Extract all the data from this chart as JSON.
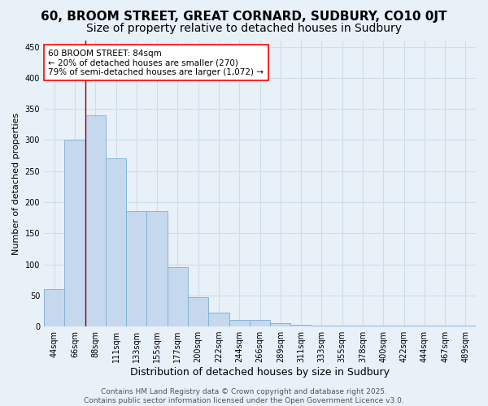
{
  "title": "60, BROOM STREET, GREAT CORNARD, SUDBURY, CO10 0JT",
  "subtitle": "Size of property relative to detached houses in Sudbury",
  "xlabel": "Distribution of detached houses by size in Sudbury",
  "ylabel": "Number of detached properties",
  "categories": [
    "44sqm",
    "66sqm",
    "88sqm",
    "111sqm",
    "133sqm",
    "155sqm",
    "177sqm",
    "200sqm",
    "222sqm",
    "244sqm",
    "266sqm",
    "289sqm",
    "311sqm",
    "333sqm",
    "355sqm",
    "378sqm",
    "400sqm",
    "422sqm",
    "444sqm",
    "467sqm",
    "489sqm"
  ],
  "values": [
    60,
    300,
    340,
    270,
    185,
    185,
    95,
    47,
    22,
    10,
    10,
    5,
    3,
    2,
    2,
    2,
    1,
    1,
    1,
    1,
    1
  ],
  "bar_color": "#c5d8ed",
  "bar_edge_color": "#7bafd4",
  "grid_color": "#d0dde8",
  "background_color": "#e8f0f8",
  "annotation_box_text": "60 BROOM STREET: 84sqm\n← 20% of detached houses are smaller (270)\n79% of semi-detached houses are larger (1,072) →",
  "property_line_x": 1.5,
  "ylim": [
    0,
    460
  ],
  "yticks": [
    0,
    50,
    100,
    150,
    200,
    250,
    300,
    350,
    400,
    450
  ],
  "footer_line1": "Contains HM Land Registry data © Crown copyright and database right 2025.",
  "footer_line2": "Contains public sector information licensed under the Open Government Licence v3.0.",
  "title_fontsize": 11,
  "subtitle_fontsize": 10,
  "xlabel_fontsize": 9,
  "ylabel_fontsize": 8,
  "tick_fontsize": 7,
  "footer_fontsize": 6.5,
  "annotation_fontsize": 7.5
}
